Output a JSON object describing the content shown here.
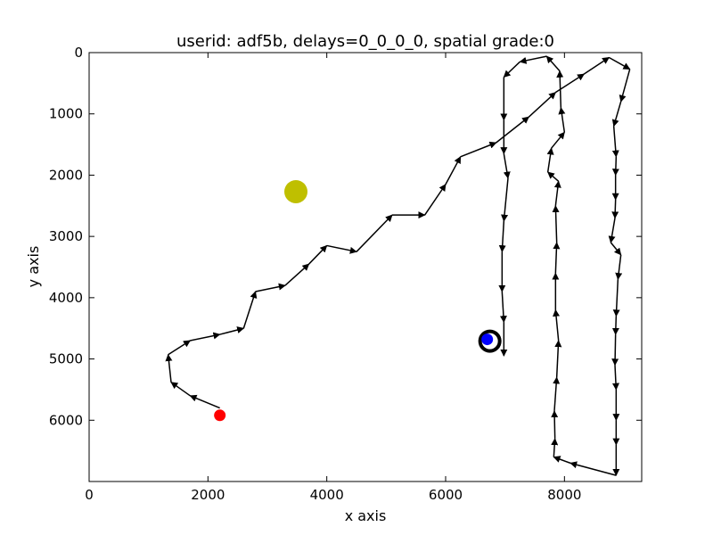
{
  "chart_data": {
    "type": "scatter",
    "title": "userid: adf5b, delays=0_0_0_0, spatial grade:0",
    "xlabel": "x axis",
    "ylabel": "y axis",
    "xlim": [
      0,
      9300
    ],
    "ylim": [
      7000,
      0
    ],
    "y_inverted": true,
    "xticks": [
      0,
      2000,
      4000,
      6000,
      8000
    ],
    "yticks": [
      0,
      1000,
      2000,
      3000,
      4000,
      5000,
      6000
    ],
    "grid": false,
    "colors": {
      "path": "#000000",
      "start_marker": "#ff0000",
      "goal_marker": "#bfbf00",
      "end_marker": "#0000ff",
      "end_ring": "#000000"
    },
    "path": [
      [
        2200,
        5800
      ],
      [
        1700,
        5600
      ],
      [
        1380,
        5380
      ],
      [
        1330,
        4930
      ],
      [
        1700,
        4700
      ],
      [
        2200,
        4600
      ],
      [
        2600,
        4500
      ],
      [
        2800,
        3900
      ],
      [
        3300,
        3800
      ],
      [
        3700,
        3450
      ],
      [
        4000,
        3150
      ],
      [
        4500,
        3250
      ],
      [
        5100,
        2650
      ],
      [
        5650,
        2650
      ],
      [
        6000,
        2150
      ],
      [
        6250,
        1700
      ],
      [
        6850,
        1470
      ],
      [
        7400,
        1050
      ],
      [
        7850,
        650
      ],
      [
        8330,
        350
      ],
      [
        8750,
        80
      ],
      [
        9100,
        270
      ],
      [
        8950,
        800
      ],
      [
        8830,
        1200
      ],
      [
        8870,
        1700
      ],
      [
        8860,
        2000
      ],
      [
        8860,
        2400
      ],
      [
        8850,
        2700
      ],
      [
        8780,
        3100
      ],
      [
        8950,
        3300
      ],
      [
        8900,
        3700
      ],
      [
        8870,
        4300
      ],
      [
        8860,
        4600
      ],
      [
        8850,
        5100
      ],
      [
        8870,
        5500
      ],
      [
        8870,
        6000
      ],
      [
        8870,
        6400
      ],
      [
        8870,
        6900
      ],
      [
        8100,
        6700
      ],
      [
        7820,
        6600
      ],
      [
        7840,
        6300
      ],
      [
        7830,
        5850
      ],
      [
        7870,
        5300
      ],
      [
        7900,
        4700
      ],
      [
        7850,
        4200
      ],
      [
        7850,
        3600
      ],
      [
        7870,
        3100
      ],
      [
        7850,
        2500
      ],
      [
        7900,
        2100
      ],
      [
        7720,
        1950
      ],
      [
        7780,
        1560
      ],
      [
        8000,
        1300
      ],
      [
        7940,
        900
      ],
      [
        7920,
        300
      ],
      [
        7700,
        60
      ],
      [
        7250,
        150
      ],
      [
        6980,
        400
      ],
      [
        6980,
        1100
      ],
      [
        6980,
        1650
      ],
      [
        7050,
        2050
      ],
      [
        6980,
        2750
      ],
      [
        6950,
        3250
      ],
      [
        6950,
        3900
      ],
      [
        6980,
        4400
      ],
      [
        6980,
        4950
      ]
    ],
    "start_point": [
      2200,
      5920
    ],
    "goal_point": [
      3480,
      2270
    ],
    "end_point": [
      6700,
      4680
    ]
  }
}
